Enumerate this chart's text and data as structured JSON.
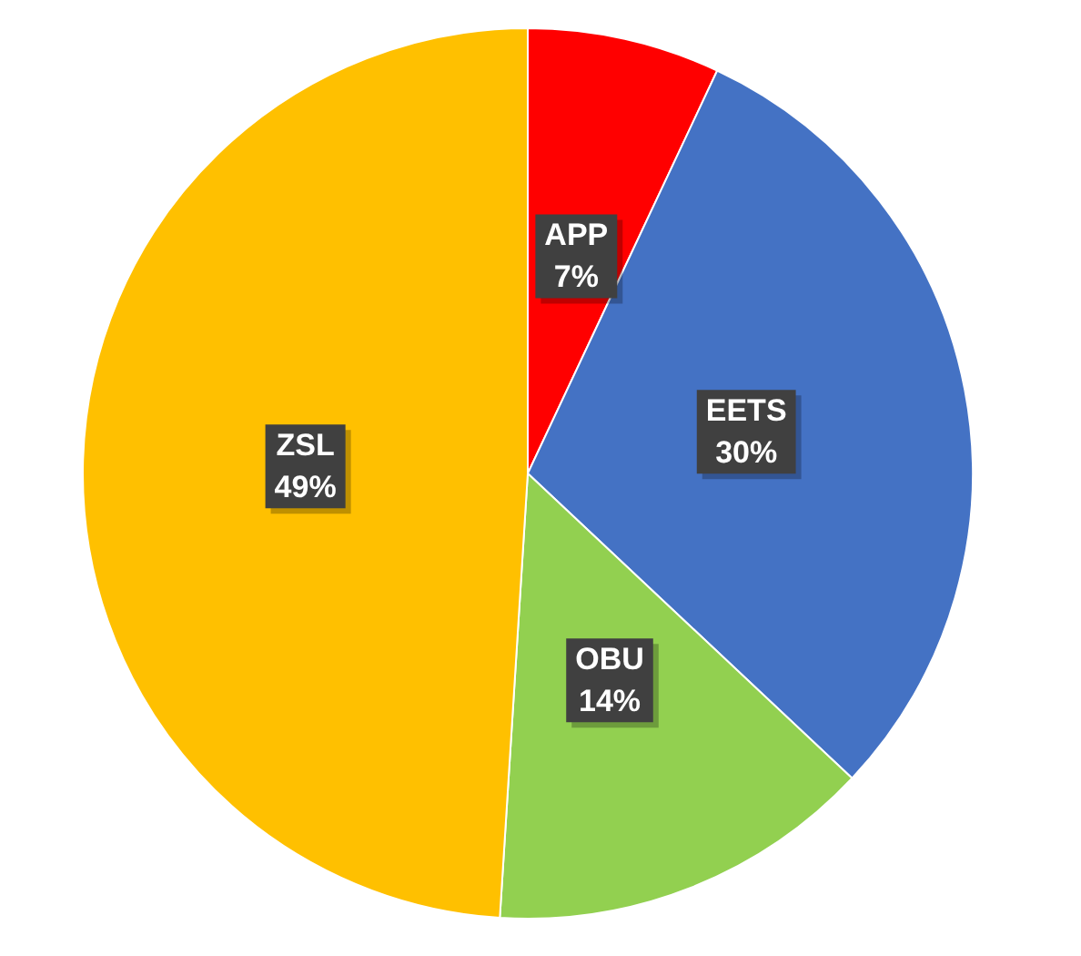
{
  "chart_data": {
    "type": "pie",
    "categories": [
      "APP",
      "EETS",
      "OBU",
      "ZSL"
    ],
    "values": [
      7,
      30,
      14,
      49
    ],
    "colors": [
      "#ff0000",
      "#4472c4",
      "#92d050",
      "#ffc000"
    ],
    "value_labels": [
      "7%",
      "30%",
      "14%",
      "49%"
    ],
    "legend": false
  }
}
